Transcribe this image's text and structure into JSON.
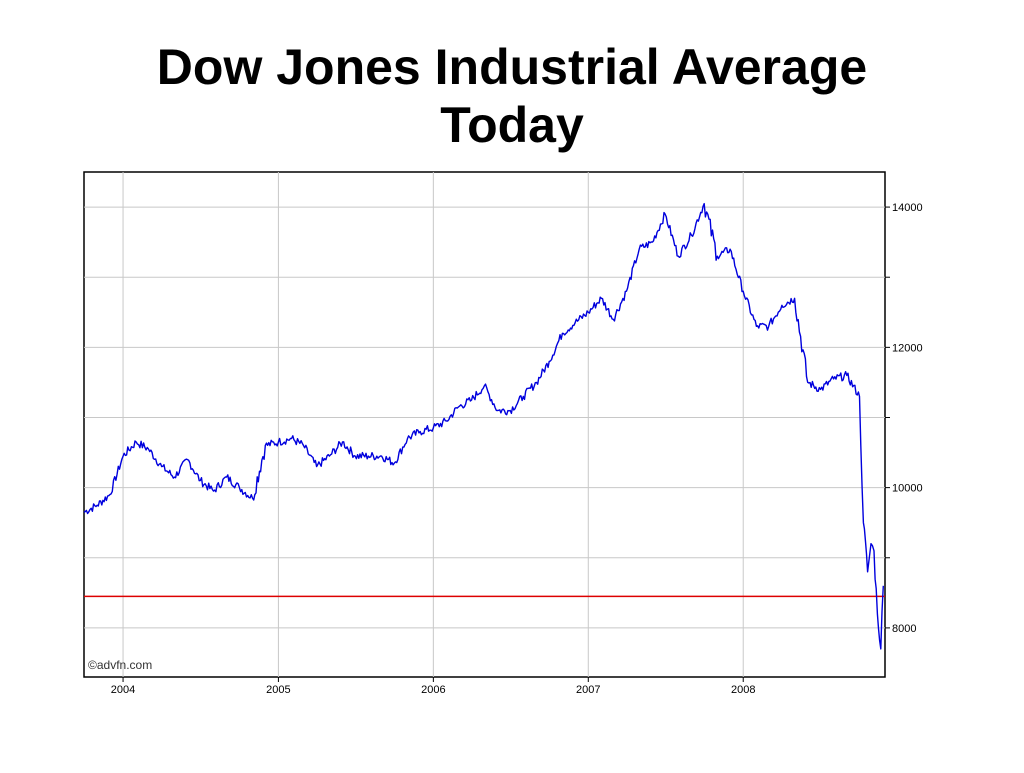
{
  "slide": {
    "title": "Dow Jones Industrial Average\nToday"
  },
  "chart_data": {
    "type": "line",
    "title": "",
    "xlabel": "",
    "ylabel": "",
    "x_ticks": [
      "2004",
      "2005",
      "2006",
      "2007",
      "2008"
    ],
    "y_ticks": [
      8000,
      10000,
      12000,
      14000
    ],
    "xlim": [
      "2003-10-01",
      "2008-11-30"
    ],
    "ylim": [
      7300,
      14500
    ],
    "y_axis_side": "right",
    "grid": true,
    "watermark": "©advfn.com",
    "reference_line": {
      "value": 8450,
      "color": "#dd0000"
    },
    "line_color": "#0000dd",
    "series": [
      {
        "x": [
          "2003-10-01",
          "2003-11-01",
          "2003-12-01",
          "2004-01-01",
          "2004-02-01",
          "2004-03-01",
          "2004-04-01",
          "2004-05-01",
          "2004-06-01",
          "2004-07-01",
          "2004-08-01",
          "2004-09-01",
          "2004-10-01",
          "2004-11-01",
          "2004-12-01",
          "2005-01-01",
          "2005-02-01",
          "2005-03-01",
          "2005-04-01",
          "2005-05-01",
          "2005-06-01",
          "2005-07-01",
          "2005-08-01",
          "2005-09-01",
          "2005-10-01",
          "2005-11-01",
          "2005-12-01",
          "2006-01-01",
          "2006-02-01",
          "2006-03-01",
          "2006-04-01",
          "2006-05-01",
          "2006-06-01",
          "2006-07-01",
          "2006-08-01",
          "2006-09-01",
          "2006-10-01",
          "2006-11-01",
          "2006-12-01",
          "2007-01-01",
          "2007-02-01",
          "2007-03-01",
          "2007-04-01",
          "2007-05-01",
          "2007-06-01",
          "2007-07-01",
          "2007-08-01",
          "2007-09-01",
          "2007-10-01",
          "2007-11-01",
          "2007-12-01",
          "2008-01-01",
          "2008-02-01",
          "2008-03-01",
          "2008-04-01",
          "2008-05-01",
          "2008-06-01",
          "2008-07-01",
          "2008-08-01",
          "2008-09-01",
          "2008-10-01",
          "2008-10-10",
          "2008-10-20",
          "2008-10-28",
          "2008-11-04",
          "2008-11-12",
          "2008-11-20",
          "2008-11-26"
        ],
        "values": [
          9650,
          9750,
          9900,
          10450,
          10650,
          10550,
          10300,
          10150,
          10400,
          10100,
          9950,
          10150,
          10000,
          9850,
          10600,
          10650,
          10700,
          10600,
          10300,
          10450,
          10650,
          10450,
          10450,
          10450,
          10350,
          10700,
          10800,
          10850,
          10950,
          11150,
          11250,
          11450,
          11100,
          11100,
          11300,
          11500,
          11800,
          12200,
          12350,
          12500,
          12700,
          12400,
          12800,
          13400,
          13500,
          13900,
          13300,
          13600,
          14050,
          13300,
          13400,
          12800,
          12300,
          12300,
          12600,
          12700,
          11500,
          11400,
          11550,
          11600,
          11300,
          9500,
          8800,
          9200,
          9100,
          8200,
          7700,
          8600
        ]
      }
    ]
  }
}
